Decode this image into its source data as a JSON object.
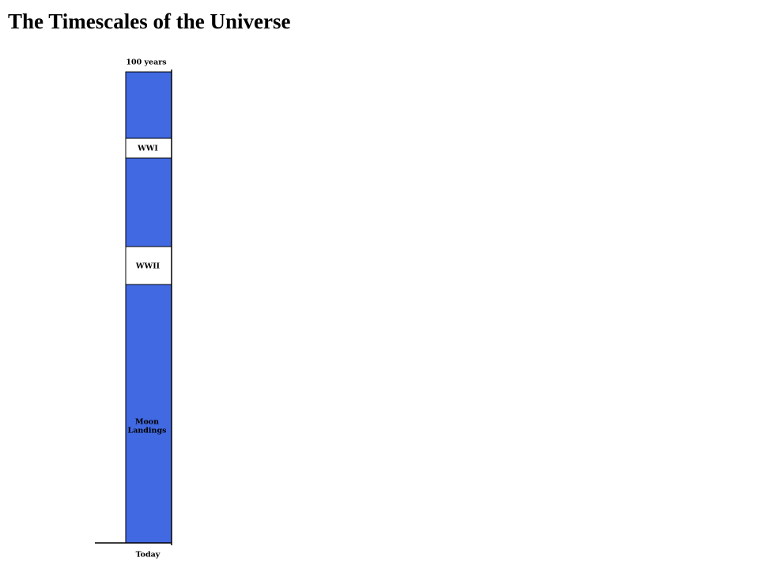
{
  "header": {
    "title": "The Timescales of the Universe"
  },
  "timeline": {
    "top_label": "100 years",
    "bottom_label": "Today",
    "events": [
      {
        "label": [
          "WWI"
        ]
      },
      {
        "label": [
          "WWII"
        ]
      },
      {
        "label": [
          "Moon",
          "Landings"
        ]
      }
    ]
  }
}
